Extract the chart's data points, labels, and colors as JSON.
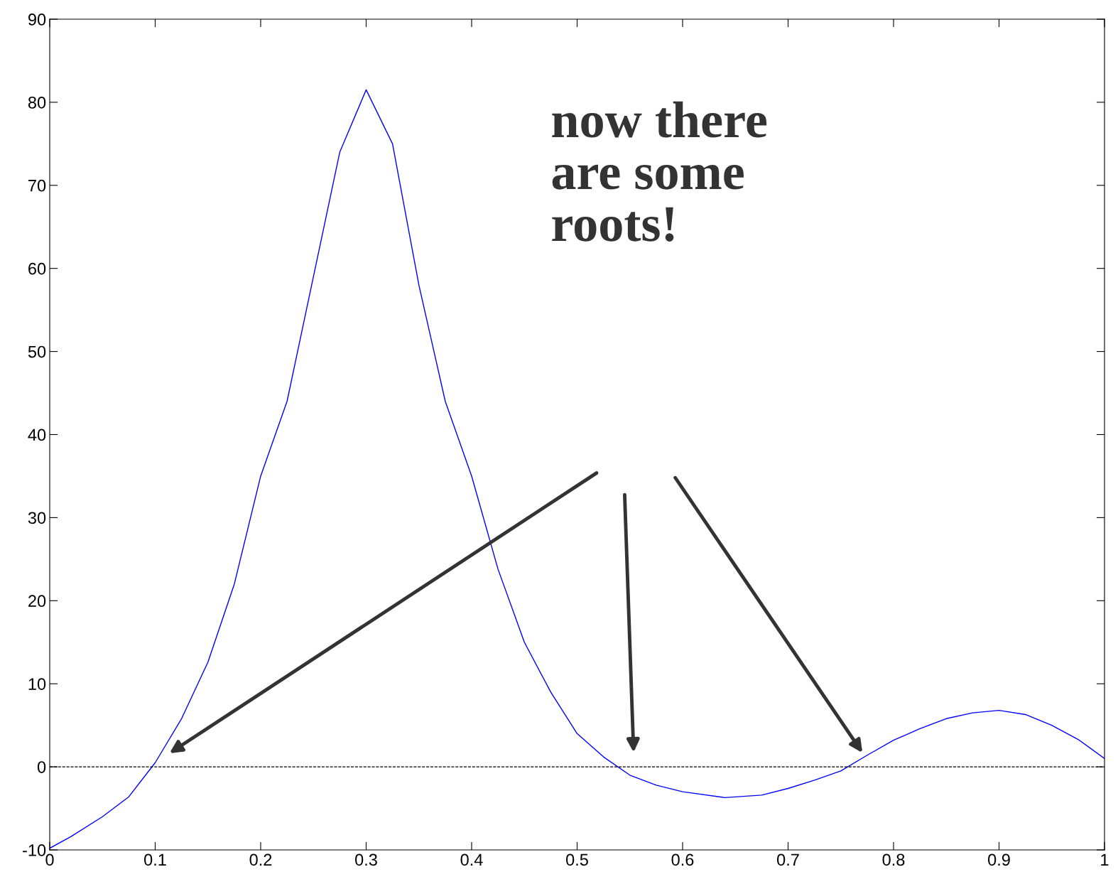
{
  "chart_data": {
    "type": "line",
    "x": [
      0,
      0.02,
      0.05,
      0.075,
      0.1,
      0.125,
      0.15,
      0.175,
      0.2,
      0.225,
      0.25,
      0.275,
      0.3,
      0.325,
      0.35,
      0.375,
      0.4,
      0.425,
      0.45,
      0.475,
      0.5,
      0.525,
      0.55,
      0.575,
      0.6,
      0.64,
      0.675,
      0.7,
      0.725,
      0.75,
      0.775,
      0.8,
      0.825,
      0.85,
      0.875,
      0.9,
      0.925,
      0.95,
      0.975,
      1.0
    ],
    "series": [
      {
        "color": "#0000ff",
        "values": [
          -9.8,
          -8.4,
          -6,
          -3.6,
          0.5,
          5.8,
          12.6,
          22,
          35,
          44,
          59,
          74,
          81.5,
          75,
          58,
          44,
          35,
          23.8,
          15,
          9,
          4,
          1.2,
          -1,
          -2.2,
          -3,
          -3.7,
          -3.4,
          -2.6,
          -1.6,
          -0.5,
          1.4,
          3.2,
          4.6,
          5.8,
          6.5,
          6.8,
          6.3,
          5,
          3.3,
          1
        ]
      }
    ],
    "xlim": [
      0,
      1
    ],
    "ylim": [
      -10,
      90
    ],
    "xticks": [
      0,
      0.1,
      0.2,
      0.3,
      0.4,
      0.5,
      0.6,
      0.7,
      0.8,
      0.9,
      1
    ],
    "yticks": [
      -10,
      0,
      10,
      20,
      30,
      40,
      50,
      60,
      70,
      80,
      90
    ],
    "ref_lines": [
      {
        "axis": "y",
        "value": 0,
        "color": "#000000",
        "line_style": "dashed"
      }
    ],
    "annotations": [
      "now there\nare some\nroots!"
    ],
    "grid": false,
    "legend": false,
    "line_style": "solid",
    "marker": "none"
  }
}
